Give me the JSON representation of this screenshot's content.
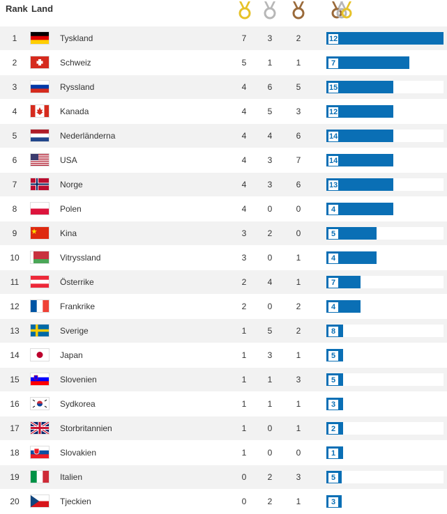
{
  "header": {
    "rank_label": "Rank",
    "land_label": "Land",
    "gold_icon": "gold-medal-icon",
    "silver_icon": "silver-medal-icon",
    "bronze_icon": "bronze-medal-icon",
    "total_icon": "total-medals-icon"
  },
  "colors": {
    "bar": "#0a6fb5",
    "row_alt": "#f2f2f2",
    "gold": "#e6c229",
    "silver": "#b7b7b7",
    "bronze": "#9a6a3a"
  },
  "rows": [
    {
      "rank": "1",
      "country": "Tyskland",
      "flag": "de",
      "gold": "7",
      "silver": "3",
      "bronze": "2",
      "total": "12",
      "bar_fraction": 1.0
    },
    {
      "rank": "2",
      "country": "Schweiz",
      "flag": "ch",
      "gold": "5",
      "silver": "1",
      "bronze": "1",
      "total": "7",
      "bar_fraction": 0.71
    },
    {
      "rank": "3",
      "country": "Ryssland",
      "flag": "ru",
      "gold": "4",
      "silver": "6",
      "bronze": "5",
      "total": "15",
      "bar_fraction": 0.57
    },
    {
      "rank": "4",
      "country": "Kanada",
      "flag": "ca",
      "gold": "4",
      "silver": "5",
      "bronze": "3",
      "total": "12",
      "bar_fraction": 0.57
    },
    {
      "rank": "5",
      "country": "Nederländerna",
      "flag": "nl",
      "gold": "4",
      "silver": "4",
      "bronze": "6",
      "total": "14",
      "bar_fraction": 0.57
    },
    {
      "rank": "6",
      "country": "USA",
      "flag": "us",
      "gold": "4",
      "silver": "3",
      "bronze": "7",
      "total": "14",
      "bar_fraction": 0.57
    },
    {
      "rank": "7",
      "country": "Norge",
      "flag": "no",
      "gold": "4",
      "silver": "3",
      "bronze": "6",
      "total": "13",
      "bar_fraction": 0.57
    },
    {
      "rank": "8",
      "country": "Polen",
      "flag": "pl",
      "gold": "4",
      "silver": "0",
      "bronze": "0",
      "total": "4",
      "bar_fraction": 0.57
    },
    {
      "rank": "9",
      "country": "Kina",
      "flag": "cn",
      "gold": "3",
      "silver": "2",
      "bronze": "0",
      "total": "5",
      "bar_fraction": 0.43
    },
    {
      "rank": "10",
      "country": "Vitryssland",
      "flag": "by",
      "gold": "3",
      "silver": "0",
      "bronze": "1",
      "total": "4",
      "bar_fraction": 0.43
    },
    {
      "rank": "11",
      "country": "Österrike",
      "flag": "at",
      "gold": "2",
      "silver": "4",
      "bronze": "1",
      "total": "7",
      "bar_fraction": 0.29
    },
    {
      "rank": "12",
      "country": "Frankrike",
      "flag": "fr",
      "gold": "2",
      "silver": "0",
      "bronze": "2",
      "total": "4",
      "bar_fraction": 0.29
    },
    {
      "rank": "13",
      "country": "Sverige",
      "flag": "se",
      "gold": "1",
      "silver": "5",
      "bronze": "2",
      "total": "8",
      "bar_fraction": 0.14
    },
    {
      "rank": "14",
      "country": "Japan",
      "flag": "jp",
      "gold": "1",
      "silver": "3",
      "bronze": "1",
      "total": "5",
      "bar_fraction": 0.14
    },
    {
      "rank": "15",
      "country": "Slovenien",
      "flag": "si",
      "gold": "1",
      "silver": "1",
      "bronze": "3",
      "total": "5",
      "bar_fraction": 0.14
    },
    {
      "rank": "16",
      "country": "Sydkorea",
      "flag": "kr",
      "gold": "1",
      "silver": "1",
      "bronze": "1",
      "total": "3",
      "bar_fraction": 0.14
    },
    {
      "rank": "17",
      "country": "Storbritannien",
      "flag": "gb",
      "gold": "1",
      "silver": "0",
      "bronze": "1",
      "total": "2",
      "bar_fraction": 0.14
    },
    {
      "rank": "18",
      "country": "Slovakien",
      "flag": "sk",
      "gold": "1",
      "silver": "0",
      "bronze": "0",
      "total": "1",
      "bar_fraction": 0.14
    },
    {
      "rank": "19",
      "country": "Italien",
      "flag": "it",
      "gold": "0",
      "silver": "2",
      "bronze": "3",
      "total": "5",
      "bar_fraction": 0.0
    },
    {
      "rank": "20",
      "country": "Tjeckien",
      "flag": "cz",
      "gold": "0",
      "silver": "2",
      "bronze": "1",
      "total": "3",
      "bar_fraction": 0.0
    }
  ]
}
